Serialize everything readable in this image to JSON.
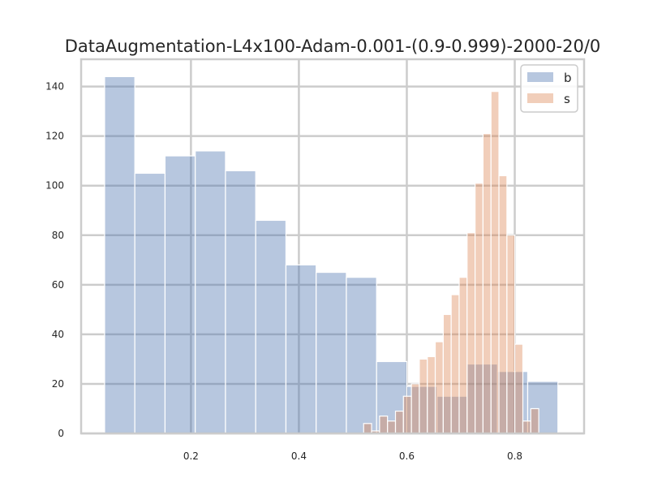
{
  "chart_data": {
    "type": "bar",
    "title": "DataAugmentation-L4x100-Adam-0.001-(0.9-0.999)-2000-20/0",
    "xlabel": "",
    "ylabel": "",
    "xlim": [
      -0.0035,
      0.9285
    ],
    "ylim": [
      0,
      151
    ],
    "xticks": [
      0.2,
      0.4,
      0.6,
      0.8
    ],
    "xtick_labels": [
      "0.2",
      "0.4",
      "0.6",
      "0.8"
    ],
    "yticks": [
      0,
      20,
      40,
      60,
      80,
      100,
      120,
      140
    ],
    "ytick_labels": [
      "0",
      "20",
      "40",
      "60",
      "80",
      "100",
      "120",
      "140"
    ],
    "grid": true,
    "legend_position": "top-right",
    "series": [
      {
        "name": "b",
        "color": "#4c72b0",
        "opacity": 0.4,
        "bin_edges": [
          0.04,
          0.096,
          0.152,
          0.208,
          0.264,
          0.32,
          0.376,
          0.432,
          0.488,
          0.544,
          0.6,
          0.656,
          0.712,
          0.768,
          0.824,
          0.88
        ],
        "counts": [
          144,
          105,
          112,
          114,
          106,
          86,
          68,
          65,
          63,
          29,
          19,
          15,
          28,
          25,
          21
        ]
      },
      {
        "name": "s",
        "color": "#dd8452",
        "opacity": 0.4,
        "bin_edges": [
          0.52,
          0.5347,
          0.5495,
          0.5642,
          0.579,
          0.5937,
          0.6085,
          0.6232,
          0.638,
          0.6527,
          0.6675,
          0.6822,
          0.697,
          0.7117,
          0.7265,
          0.7412,
          0.756,
          0.7707,
          0.7855,
          0.8002,
          0.815,
          0.8297,
          0.8445
        ],
        "counts": [
          4,
          1,
          7,
          5,
          9,
          15,
          20,
          30,
          31,
          37,
          48,
          56,
          63,
          81,
          101,
          121,
          138,
          104,
          80,
          36,
          5,
          10
        ]
      }
    ]
  }
}
